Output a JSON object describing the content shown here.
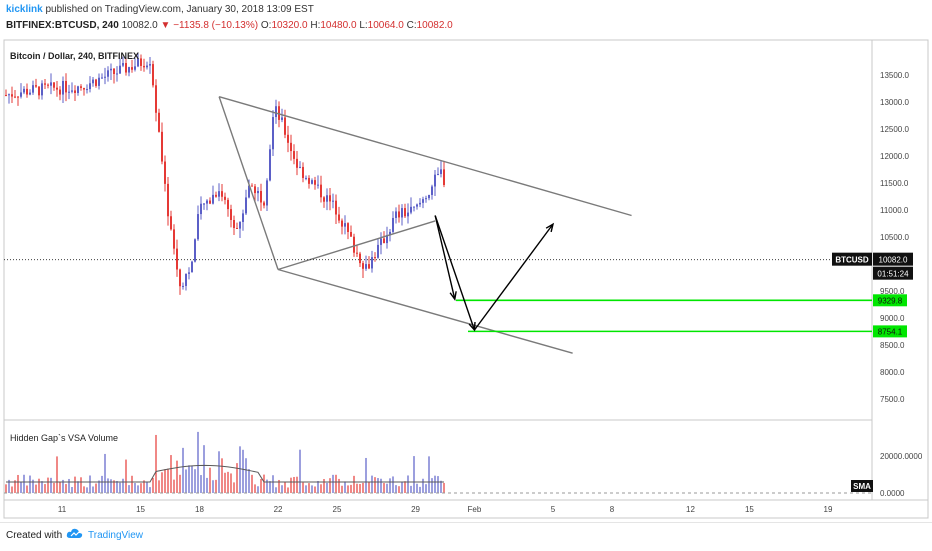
{
  "header": {
    "author": "kicklink",
    "published_text": " published on TradingView.com, January 30, 2018 13:09 EST",
    "symbol": "BITFINEX:BTCUSD",
    "interval": ", 240",
    "last": "10082.0",
    "change": "▼ −1135.8 (−10.13%)",
    "open_label": "O:",
    "open": "10320.0",
    "high_label": "H:",
    "high": "10480.0",
    "low_label": "L:",
    "low": "10064.0",
    "close_label": "C:",
    "close": "10082.0"
  },
  "footer": {
    "created_with": "Created with",
    "brand": "TradingView"
  },
  "colors": {
    "up": "#5b5fc7",
    "down": "#e53935",
    "channel": "#7a7a7a",
    "target_line": "#00e600",
    "arrow": "#000000",
    "sma": "#5a5a5a"
  },
  "chart_data": {
    "type": "candlestick",
    "title": "Bitcoin / Dollar, 240, BITFINEX",
    "y_axis": {
      "ticks": [
        "13500.0",
        "13000.0",
        "12500.0",
        "12000.0",
        "11500.0",
        "11000.0",
        "10500.0",
        "9500.0",
        "9000.0",
        "8500.0",
        "8000.0",
        "7500.0"
      ],
      "ylim": [
        7150,
        14150
      ]
    },
    "x_axis": {
      "ticks": [
        "11",
        "15",
        "18",
        "22",
        "25",
        "29",
        "Feb",
        "5",
        "8",
        "12",
        "15",
        "19"
      ]
    },
    "last_price": {
      "symbol": "BTCUSD",
      "value": "10082.0",
      "countdown": "01:51:24"
    },
    "targets": [
      {
        "label": "9329.8",
        "value": 9329.8
      },
      {
        "label": "8754.1",
        "value": 8754.1
      }
    ],
    "channel": {
      "upper_line": [
        {
          "x": "Jan 19",
          "y": 13100
        },
        {
          "x": "Feb 9",
          "y": 10900
        }
      ],
      "lower_line": [
        {
          "x": "Jan 22",
          "y": 9900
        },
        {
          "x": "Feb 6",
          "y": 8350
        }
      ],
      "wedge_line": [
        {
          "x": "Jan 22",
          "y": 9900
        },
        {
          "x": "Jan 30",
          "y": 10800
        }
      ],
      "left_line": [
        {
          "x": "Jan 19",
          "y": 13100
        },
        {
          "x": "Jan 22",
          "y": 9900
        }
      ]
    },
    "projection_arrows": [
      [
        {
          "x": "Jan 30",
          "y": 10900
        },
        {
          "x": "Jan 31",
          "y": 9350
        }
      ],
      [
        {
          "x": "Jan 30",
          "y": 10900
        },
        {
          "x": "Feb 1",
          "y": 8780
        }
      ],
      [
        {
          "x": "Feb 1",
          "y": 8780
        },
        {
          "x": "Feb 5",
          "y": 10740
        }
      ]
    ],
    "volume_pane": {
      "title": "Hidden Gap`s VSA Volume",
      "ticks": [
        "20000.0000",
        "0.0000"
      ],
      "sma_label": "SMA"
    }
  }
}
